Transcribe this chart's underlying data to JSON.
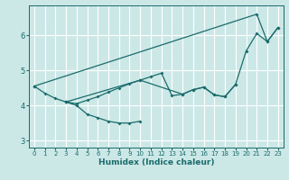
{
  "xlabel": "Humidex (Indice chaleur)",
  "bg_color": "#cce8e6",
  "line_color": "#1a6b6b",
  "grid_color": "#ffffff",
  "xlim": [
    -0.5,
    23.5
  ],
  "ylim": [
    2.8,
    6.85
  ],
  "yticks": [
    3,
    4,
    5,
    6
  ],
  "xticks": [
    0,
    1,
    2,
    3,
    4,
    5,
    6,
    7,
    8,
    9,
    10,
    11,
    12,
    13,
    14,
    15,
    16,
    17,
    18,
    19,
    20,
    21,
    22,
    23
  ],
  "lines": [
    {
      "x": [
        0,
        1,
        2,
        3,
        4,
        5,
        6,
        7,
        8,
        9,
        10
      ],
      "y": [
        4.55,
        4.35,
        4.2,
        4.1,
        4.0,
        3.75,
        3.65,
        3.55,
        3.5,
        3.5,
        3.55
      ]
    },
    {
      "x": [
        3,
        4,
        5,
        6,
        7,
        8,
        9,
        10,
        11,
        12,
        13,
        14,
        15,
        16,
        17,
        18,
        19
      ],
      "y": [
        4.1,
        4.05,
        4.15,
        4.25,
        4.38,
        4.5,
        4.62,
        4.72,
        4.82,
        4.92,
        4.28,
        4.32,
        4.45,
        4.52,
        4.3,
        4.25,
        4.6
      ]
    },
    {
      "x": [
        3,
        10,
        14,
        15,
        16,
        17,
        18,
        19,
        20,
        21,
        22,
        23
      ],
      "y": [
        4.1,
        4.72,
        4.32,
        4.45,
        4.52,
        4.3,
        4.25,
        4.6,
        5.55,
        6.05,
        5.82,
        6.22
      ]
    },
    {
      "x": [
        0,
        21,
        22,
        23
      ],
      "y": [
        4.55,
        6.6,
        5.82,
        6.22
      ]
    }
  ]
}
